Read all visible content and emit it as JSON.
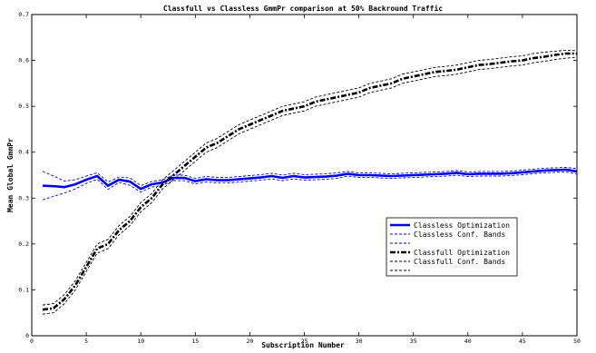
{
  "chart_data": {
    "type": "line",
    "title": "Classfull vs Classless GmmPr comparison at 50% Backround Traffic",
    "xlabel": "Subscription Number",
    "ylabel": "Mean Global GmmPr",
    "xlim": [
      0,
      50
    ],
    "ylim": [
      0,
      0.7
    ],
    "x_ticks": [
      "0",
      "5",
      "10",
      "15",
      "20",
      "25",
      "30",
      "35",
      "40",
      "45",
      "50"
    ],
    "y_ticks": [
      "0",
      "0.1",
      "0.2",
      "0.3",
      "0.4",
      "0.5",
      "0.6",
      "0.7"
    ],
    "grid": false,
    "legend_position": "center-right",
    "legend": [
      "Classless Optimization",
      "Classless Conf. Bands",
      "",
      "Classfull Optimization",
      "Classfull Conf. Bands",
      ""
    ],
    "x": [
      1,
      2,
      3,
      4,
      5,
      6,
      7,
      8,
      9,
      10,
      11,
      12,
      13,
      14,
      15,
      16,
      17,
      18,
      19,
      20,
      21,
      22,
      23,
      24,
      25,
      26,
      27,
      28,
      29,
      30,
      31,
      32,
      33,
      34,
      35,
      36,
      37,
      38,
      39,
      40,
      41,
      42,
      43,
      44,
      45,
      46,
      47,
      48,
      49,
      50
    ],
    "series": [
      {
        "name": "Classless Optimization",
        "color": "#0000ee",
        "style": "solid-thick",
        "values": [
          0.327,
          0.326,
          0.324,
          0.33,
          0.34,
          0.348,
          0.327,
          0.34,
          0.336,
          0.32,
          0.33,
          0.334,
          0.344,
          0.344,
          0.337,
          0.341,
          0.339,
          0.339,
          0.341,
          0.343,
          0.345,
          0.348,
          0.344,
          0.348,
          0.345,
          0.346,
          0.347,
          0.349,
          0.353,
          0.35,
          0.35,
          0.349,
          0.348,
          0.349,
          0.35,
          0.351,
          0.352,
          0.353,
          0.355,
          0.352,
          0.353,
          0.353,
          0.353,
          0.354,
          0.356,
          0.358,
          0.36,
          0.361,
          0.362,
          0.358
        ]
      },
      {
        "name": "Classless Conf. Bands (upper)",
        "color": "#0000ee",
        "style": "dashed",
        "values": [
          0.358,
          0.348,
          0.337,
          0.34,
          0.348,
          0.355,
          0.335,
          0.346,
          0.344,
          0.327,
          0.336,
          0.34,
          0.35,
          0.35,
          0.343,
          0.347,
          0.345,
          0.345,
          0.347,
          0.349,
          0.351,
          0.354,
          0.35,
          0.354,
          0.351,
          0.352,
          0.353,
          0.355,
          0.358,
          0.355,
          0.355,
          0.354,
          0.353,
          0.354,
          0.355,
          0.356,
          0.357,
          0.358,
          0.36,
          0.357,
          0.358,
          0.358,
          0.358,
          0.359,
          0.361,
          0.363,
          0.365,
          0.366,
          0.367,
          0.364
        ]
      },
      {
        "name": "Classless Conf. Bands (lower)",
        "color": "#0000ee",
        "style": "dashed",
        "values": [
          0.296,
          0.304,
          0.311,
          0.32,
          0.332,
          0.341,
          0.319,
          0.334,
          0.328,
          0.313,
          0.324,
          0.328,
          0.338,
          0.338,
          0.331,
          0.335,
          0.333,
          0.333,
          0.335,
          0.337,
          0.339,
          0.342,
          0.338,
          0.342,
          0.339,
          0.34,
          0.341,
          0.343,
          0.348,
          0.345,
          0.345,
          0.344,
          0.343,
          0.344,
          0.345,
          0.346,
          0.347,
          0.348,
          0.35,
          0.347,
          0.348,
          0.348,
          0.348,
          0.349,
          0.351,
          0.353,
          0.355,
          0.356,
          0.357,
          0.352
        ]
      },
      {
        "name": "Classfull Optimization",
        "color": "#000000",
        "style": "dashdot-thick",
        "values": [
          0.057,
          0.06,
          0.08,
          0.11,
          0.15,
          0.19,
          0.2,
          0.23,
          0.25,
          0.28,
          0.3,
          0.33,
          0.35,
          0.37,
          0.39,
          0.41,
          0.42,
          0.435,
          0.45,
          0.46,
          0.47,
          0.48,
          0.49,
          0.495,
          0.5,
          0.51,
          0.515,
          0.52,
          0.525,
          0.53,
          0.54,
          0.545,
          0.55,
          0.56,
          0.565,
          0.57,
          0.575,
          0.577,
          0.58,
          0.585,
          0.59,
          0.592,
          0.595,
          0.598,
          0.6,
          0.605,
          0.608,
          0.612,
          0.615,
          0.615
        ]
      },
      {
        "name": "Classfull Conf. Bands (upper)",
        "color": "#000000",
        "style": "dashed",
        "values": [
          0.067,
          0.07,
          0.09,
          0.12,
          0.16,
          0.2,
          0.21,
          0.24,
          0.26,
          0.29,
          0.31,
          0.34,
          0.36,
          0.38,
          0.4,
          0.42,
          0.43,
          0.445,
          0.46,
          0.47,
          0.48,
          0.49,
          0.5,
          0.505,
          0.51,
          0.52,
          0.525,
          0.53,
          0.535,
          0.54,
          0.55,
          0.555,
          0.56,
          0.57,
          0.575,
          0.58,
          0.585,
          0.587,
          0.59,
          0.595,
          0.6,
          0.602,
          0.605,
          0.608,
          0.61,
          0.615,
          0.618,
          0.62,
          0.622,
          0.621
        ]
      },
      {
        "name": "Classfull Conf. Bands (lower)",
        "color": "#000000",
        "style": "dashed",
        "values": [
          0.047,
          0.05,
          0.07,
          0.1,
          0.14,
          0.18,
          0.19,
          0.22,
          0.24,
          0.27,
          0.29,
          0.32,
          0.34,
          0.36,
          0.38,
          0.4,
          0.41,
          0.425,
          0.44,
          0.45,
          0.46,
          0.47,
          0.48,
          0.485,
          0.49,
          0.5,
          0.505,
          0.51,
          0.515,
          0.52,
          0.53,
          0.535,
          0.54,
          0.55,
          0.555,
          0.56,
          0.565,
          0.567,
          0.57,
          0.575,
          0.58,
          0.582,
          0.585,
          0.588,
          0.59,
          0.595,
          0.598,
          0.602,
          0.605,
          0.607
        ]
      }
    ]
  }
}
